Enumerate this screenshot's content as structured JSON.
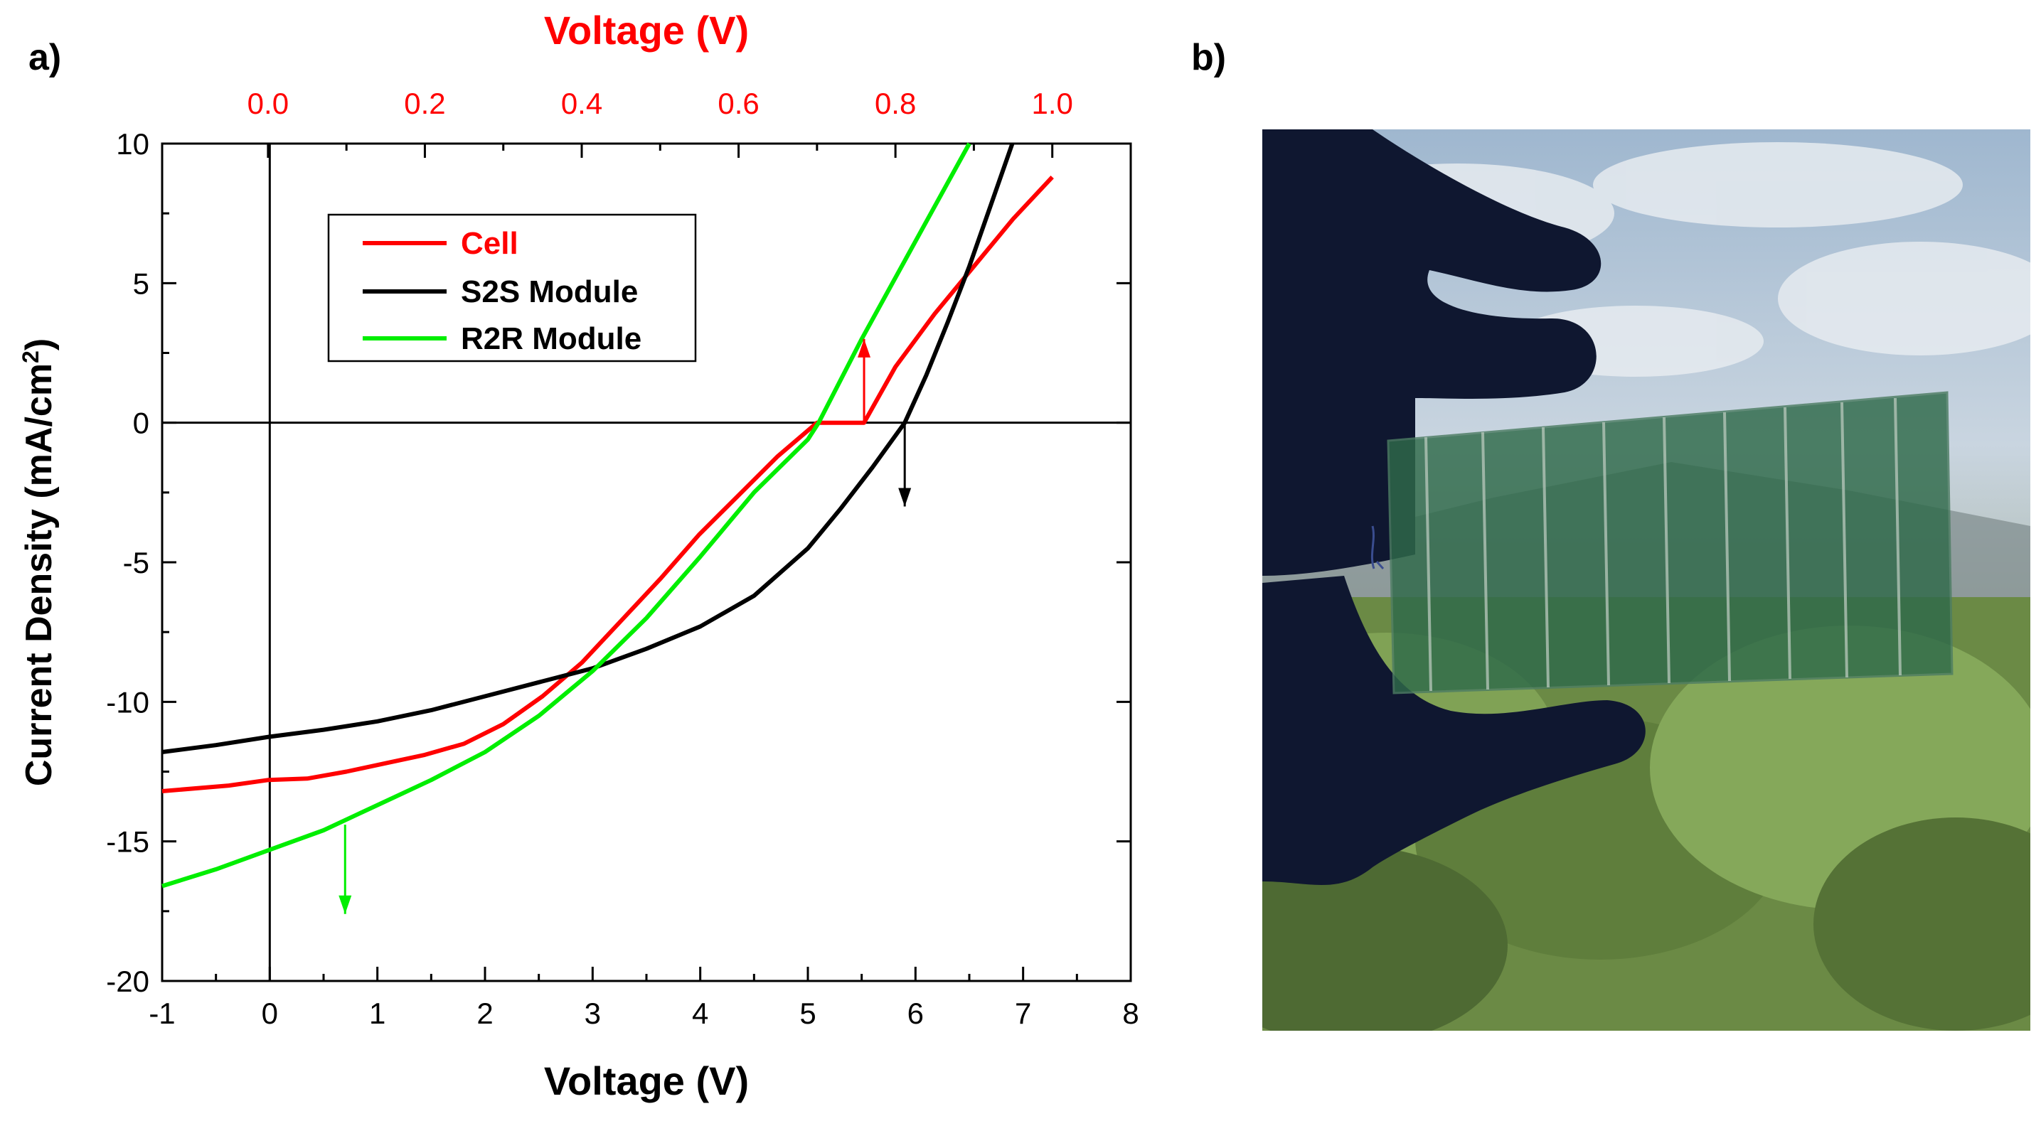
{
  "panels": {
    "a_label": "a)",
    "b_label": "b)"
  },
  "chart_data": {
    "type": "line",
    "title": "",
    "xlabel": "Voltage (V)",
    "ylabel": "Current Density (mA/cm",
    "ylabel_sup": "2",
    "ylabel_end": ")",
    "top_xlabel": "Voltage (V)",
    "xlim": [
      -1,
      8
    ],
    "ylim": [
      -20,
      10
    ],
    "top_xlim": [
      -0.135,
      1.1
    ],
    "x_ticks": [
      "-1",
      "0",
      "1",
      "2",
      "3",
      "4",
      "5",
      "6",
      "7",
      "8"
    ],
    "x_tick_values": [
      -1,
      0,
      1,
      2,
      3,
      4,
      5,
      6,
      7,
      8
    ],
    "y_ticks": [
      "10",
      "5",
      "0",
      "-5",
      "-10",
      "-15",
      "-20"
    ],
    "y_tick_values": [
      10,
      5,
      0,
      -5,
      -10,
      -15,
      -20
    ],
    "top_ticks": [
      "0.0",
      "0.2",
      "0.4",
      "0.6",
      "0.8",
      "1.0"
    ],
    "top_tick_values": [
      0.0,
      0.2,
      0.4,
      0.6,
      0.8,
      1.0
    ],
    "legend": {
      "position": "top-left",
      "entries": [
        "Cell",
        "S2S Module",
        "R2R Module"
      ]
    },
    "colors": {
      "cell": "#ff0000",
      "s2s": "#000000",
      "r2r": "#00ee00",
      "top_axis": "#ff0000"
    },
    "series": [
      {
        "name": "Cell",
        "axis": "top",
        "color": "#ff0000",
        "x": [
          -0.135,
          -0.05,
          0.0,
          0.05,
          0.1,
          0.15,
          0.2,
          0.25,
          0.3,
          0.35,
          0.4,
          0.45,
          0.5,
          0.55,
          0.6,
          0.65,
          0.7,
          0.75,
          0.76,
          0.8,
          0.85,
          0.9,
          0.95,
          1.0
        ],
        "y": [
          -13.2,
          -13.0,
          -12.8,
          -12.75,
          -12.5,
          -12.2,
          -11.9,
          -11.5,
          -10.8,
          -9.8,
          -8.6,
          -7.1,
          -5.6,
          -4.0,
          -2.6,
          -1.2,
          0.0,
          0.0,
          0.0,
          2.0,
          3.9,
          5.6,
          7.3,
          8.8
        ]
      },
      {
        "name": "S2S Module",
        "axis": "bottom",
        "color": "#000000",
        "x": [
          -1.0,
          -0.5,
          0.0,
          0.5,
          1.0,
          1.5,
          2.0,
          2.5,
          3.0,
          3.5,
          4.0,
          4.5,
          5.0,
          5.3,
          5.6,
          5.9,
          6.1,
          6.3,
          6.5,
          6.7,
          6.9
        ],
        "y": [
          -11.8,
          -11.55,
          -11.25,
          -11.0,
          -10.7,
          -10.3,
          -9.8,
          -9.3,
          -8.8,
          -8.1,
          -7.3,
          -6.2,
          -4.5,
          -3.1,
          -1.6,
          0.0,
          1.7,
          3.6,
          5.6,
          7.8,
          10.0
        ]
      },
      {
        "name": "R2R Module",
        "axis": "bottom",
        "color": "#00ee00",
        "x": [
          -1.0,
          -0.5,
          0.0,
          0.5,
          1.0,
          1.5,
          2.0,
          2.5,
          3.0,
          3.5,
          4.0,
          4.5,
          5.0,
          5.1,
          5.5,
          6.0,
          6.5
        ],
        "y": [
          -16.6,
          -16.0,
          -15.3,
          -14.6,
          -13.7,
          -12.8,
          -11.8,
          -10.5,
          -8.9,
          -7.0,
          -4.8,
          -2.5,
          -0.6,
          0.0,
          3.0,
          6.5,
          10.0
        ]
      }
    ],
    "annotations": [
      {
        "series": "Cell",
        "axis": "top",
        "x": 0.76,
        "y_from": 0.0,
        "y_to": 3.0,
        "direction": "up",
        "color": "#ff0000"
      },
      {
        "series": "S2S Module",
        "axis": "bottom",
        "x": 5.9,
        "y_from": 0.0,
        "y_to": -3.0,
        "direction": "down",
        "color": "#000000"
      },
      {
        "series": "R2R Module",
        "axis": "bottom",
        "x": 0.7,
        "y_from": -14.4,
        "y_to": -17.6,
        "direction": "down",
        "color": "#00ee00"
      }
    ]
  }
}
